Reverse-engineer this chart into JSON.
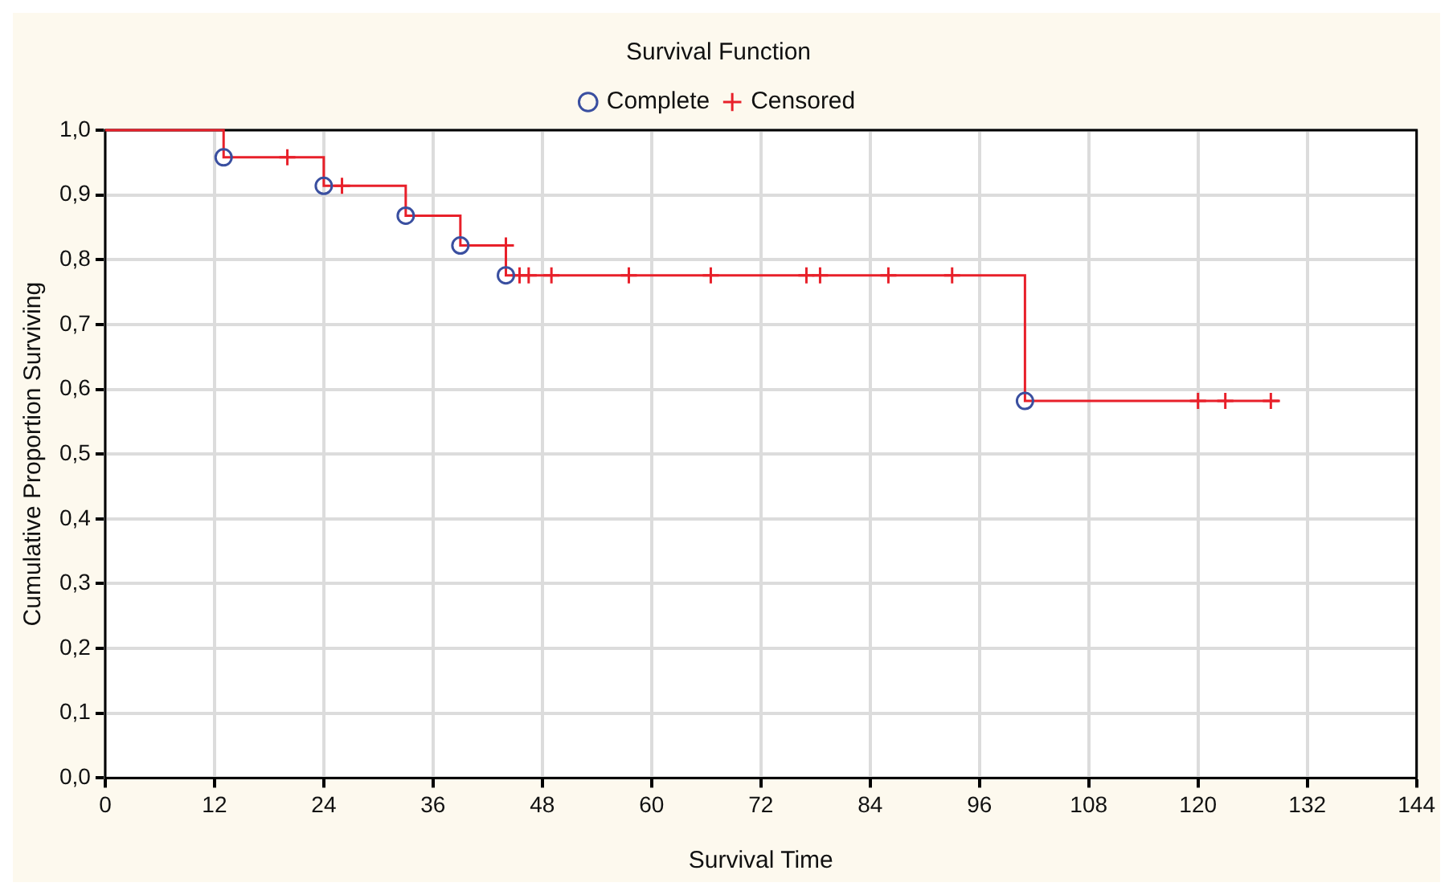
{
  "chart_data": {
    "type": "step",
    "title": "Survival Function",
    "xlabel": "Survival Time",
    "ylabel": "Cumulative Proportion Surviving",
    "xlim": [
      0,
      144
    ],
    "xticks": [
      0,
      12,
      24,
      36,
      48,
      60,
      72,
      84,
      96,
      108,
      120,
      132,
      144
    ],
    "ylim": [
      0,
      1
    ],
    "yticks": [
      {
        "value": 0,
        "label": "0,0"
      },
      {
        "value": 0.1,
        "label": "0,1"
      },
      {
        "value": 0.2,
        "label": "0,2"
      },
      {
        "value": 0.3,
        "label": "0,3"
      },
      {
        "value": 0.4,
        "label": "0,4"
      },
      {
        "value": 0.5,
        "label": "0,5"
      },
      {
        "value": 0.6,
        "label": "0,6"
      },
      {
        "value": 0.7,
        "label": "0,7"
      },
      {
        "value": 0.8,
        "label": "0,8"
      },
      {
        "value": 0.9,
        "label": "0,9"
      },
      {
        "value": 1,
        "label": "1,0"
      }
    ],
    "grid": true,
    "legend": "top",
    "series": [
      {
        "color": "#e8202a",
        "marker": "none",
        "x": [
          0,
          13,
          24,
          33,
          39,
          44,
          101,
          129
        ],
        "values": [
          1,
          0.958,
          0.914,
          0.868,
          0.822,
          0.776,
          0.582,
          0.582
        ]
      },
      {
        "type": "scatter",
        "name": "Complete",
        "color": "#3a4fa0",
        "marker": "circle",
        "x": [
          13,
          24,
          33,
          39,
          44,
          101
        ],
        "values": [
          0.958,
          0.914,
          0.868,
          0.822,
          0.776,
          0.582
        ]
      },
      {
        "type": "scatter",
        "name": "Censored",
        "color": "#e8202a",
        "marker": "cross",
        "x": [
          20,
          26,
          44,
          45.5,
          46.5,
          49,
          57.5,
          66.5,
          77,
          78.5,
          86,
          93,
          120,
          123,
          128
        ],
        "values": [
          0.958,
          0.914,
          0.822,
          0.776,
          0.776,
          0.776,
          0.776,
          0.776,
          0.776,
          0.776,
          0.776,
          0.776,
          0.582,
          0.582,
          0.582
        ]
      }
    ]
  }
}
